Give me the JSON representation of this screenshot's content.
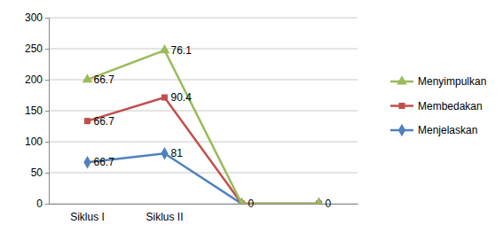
{
  "chart_data": {
    "type": "line",
    "stacked": true,
    "data_labels": true,
    "grid": true,
    "legend": "right",
    "categories": [
      "Siklus I",
      "Siklus II",
      null,
      null
    ],
    "ylim": [
      0,
      300
    ],
    "yticks": [
      0,
      50,
      100,
      150,
      200,
      250,
      300
    ],
    "series": [
      {
        "name": "Menjelaskan",
        "color": "#4f81bd",
        "marker": "diamond",
        "values": [
          66.7,
          81,
          0,
          0
        ]
      },
      {
        "name": "Membedakan",
        "color": "#c0504d",
        "marker": "square",
        "values": [
          66.7,
          90.4,
          0,
          0
        ]
      },
      {
        "name": "Menyimpulkan",
        "color": "#9bbb59",
        "marker": "triangle",
        "values": [
          66.7,
          76.1,
          0,
          0
        ]
      }
    ]
  }
}
